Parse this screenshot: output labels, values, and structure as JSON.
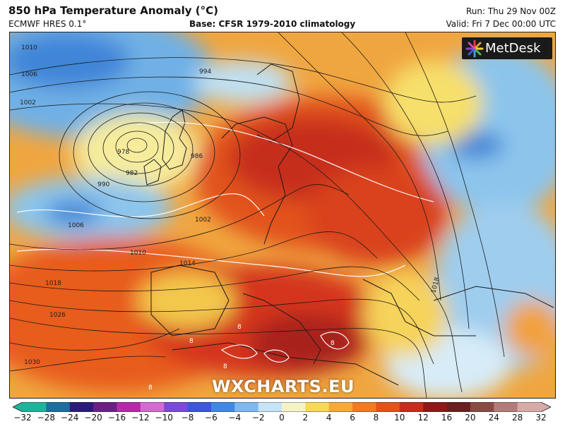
{
  "header": {
    "title": "850 hPa Temperature Anomaly (°C)",
    "model": "ECMWF HRES 0.1°",
    "base": "Base: CFSR 1979-2010 climatology",
    "run": "Run: Thu 29 Nov 00Z",
    "valid": "Valid: Fri 7 Dec 00:00 UTC"
  },
  "logo": {
    "text": "MetDesk"
  },
  "watermark": "WXCHARTS.EU",
  "colorbar": {
    "ticks": [
      "−32",
      "−28",
      "−24",
      "−20",
      "−16",
      "−12",
      "−10",
      "−8",
      "−6",
      "−4",
      "−2",
      "0",
      "2",
      "4",
      "6",
      "8",
      "10",
      "12",
      "16",
      "20",
      "24",
      "28",
      "32"
    ],
    "colors": [
      "#1fb39c",
      "#1c6fa0",
      "#2b1a7a",
      "#6b1f86",
      "#b52aa8",
      "#d46bd0",
      "#7a4bd6",
      "#3d57d8",
      "#3f8ae0",
      "#7db8ee",
      "#c6e3f7",
      "#f6f2c8",
      "#f7d85b",
      "#f6a83a",
      "#ef7b22",
      "#e2521a",
      "#c62d1a",
      "#8c1a18",
      "#6b1f1f",
      "#8a4a44",
      "#b37c78",
      "#d6aaa6"
    ]
  },
  "isobar_labels": [
    "1010",
    "1006",
    "1002",
    "994",
    "978",
    "982",
    "986",
    "990",
    "1006",
    "1002",
    "1010",
    "1014",
    "1018",
    "1026",
    "1030",
    "1018"
  ],
  "anomaly_labels": [
    "8",
    "8",
    "8",
    "8",
    "8"
  ]
}
